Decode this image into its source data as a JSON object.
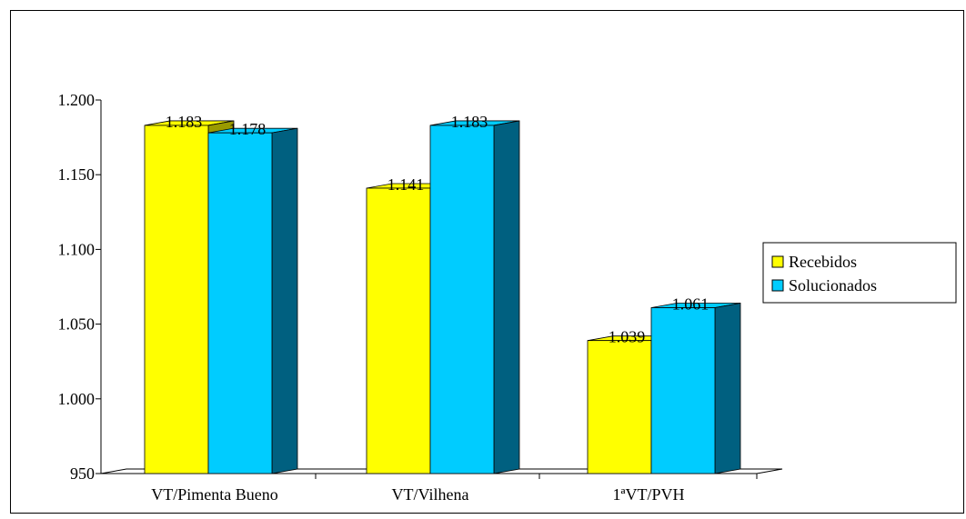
{
  "chart_data": {
    "type": "bar",
    "title": "",
    "xlabel": "",
    "ylabel": "",
    "categories": [
      "VT/Pimenta Bueno",
      "VT/Vilhena",
      "1ªVT/PVH"
    ],
    "series": [
      {
        "name": "Recebidos",
        "values": [
          1183,
          1141,
          1039
        ],
        "labels": [
          "1.183",
          "1.141",
          "1.039"
        ],
        "color": "#ffff00",
        "side_color": "#9a9a00"
      },
      {
        "name": "Solucionados",
        "values": [
          1178,
          1183,
          1061
        ],
        "labels": [
          "1.178",
          "1.183",
          "1.061"
        ],
        "color": "#00ccff",
        "side_color": "#006080"
      }
    ],
    "ylim": [
      950,
      1200
    ],
    "yticks": [
      950,
      1000,
      1050,
      1100,
      1150,
      1200
    ],
    "ytick_labels": [
      "950",
      "1.000",
      "1.050",
      "1.100",
      "1.150",
      "1.200"
    ],
    "grid": false,
    "legend_position": "right"
  }
}
